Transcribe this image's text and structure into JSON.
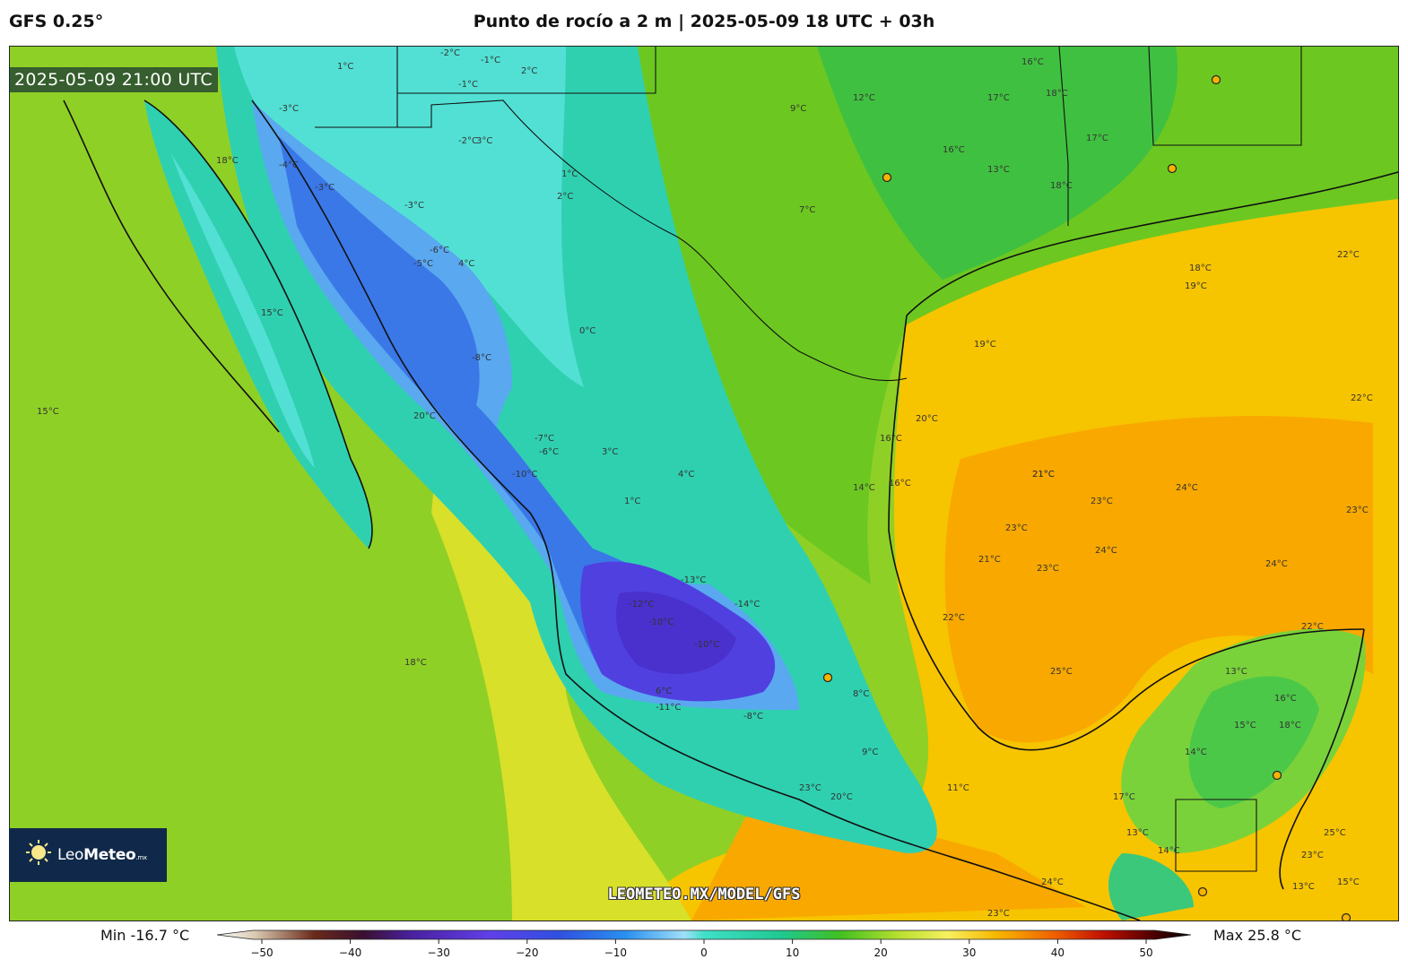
{
  "header": {
    "model": "GFS 0.25°",
    "title": "Punto de rocío a 2 m | 2025-05-09 18 UTC + 03h"
  },
  "map": {
    "valid_time": "2025-05-09 21:00 UTC",
    "watermark": "LEOMETEO.MX/MODEL/GFS",
    "logo": {
      "name_light": "Leo",
      "name_bold": "Meteo",
      "suffix": ".mx"
    },
    "contour_labels": [
      "-2°C",
      "-1°C",
      "1°C",
      "-1°C",
      "2°C",
      "-3°C",
      "3°C",
      "-2°C",
      "-4°C",
      "-3°C",
      "1°C",
      "-3°C",
      "-6°C",
      "-5°C",
      "4°C",
      "2°C",
      "0°C",
      "-8°C",
      "-7°C",
      "-6°C",
      "-10°C",
      "3°C",
      "4°C",
      "1°C",
      "-12°C",
      "-13°C",
      "-10°C",
      "-14°C",
      "-10°C",
      "-11°C",
      "-8°C",
      "6°C",
      "8°C",
      "9°C",
      "11°C",
      "20°C",
      "20°C",
      "23°C",
      "24°C",
      "23°C",
      "18°C",
      "15°C",
      "15°C",
      "18°C",
      "9°C",
      "12°C",
      "16°C",
      "17°C",
      "16°C",
      "7°C",
      "13°C",
      "18°C",
      "17°C",
      "18°C",
      "19°C",
      "21°C",
      "16°C",
      "18°C",
      "19°C",
      "22°C",
      "16°C",
      "14°C",
      "20°C",
      "21°C",
      "23°C",
      "22°C",
      "24°C",
      "23°C",
      "23°C",
      "24°C",
      "23°C",
      "24°C",
      "21°C",
      "22°C",
      "22°C",
      "25°C",
      "13°C",
      "16°C",
      "15°C",
      "18°C",
      "14°C",
      "17°C",
      "13°C",
      "14°C",
      "25°C",
      "23°C",
      "13°C",
      "15°C"
    ],
    "palette": {
      "ocean": "#8fd026",
      "land_warm": "#f7b500",
      "plateau": "#2fd0b0",
      "cold_core": "#5040e0",
      "border": "#111111"
    }
  },
  "colorbar": {
    "min_label": "Min -16.7 °C",
    "max_label": "Max 25.8 °C",
    "range": [
      -50,
      50
    ],
    "ticks": [
      "−50",
      "−40",
      "−30",
      "−20",
      "−10",
      "0",
      "10",
      "20",
      "30",
      "40",
      "50"
    ]
  }
}
